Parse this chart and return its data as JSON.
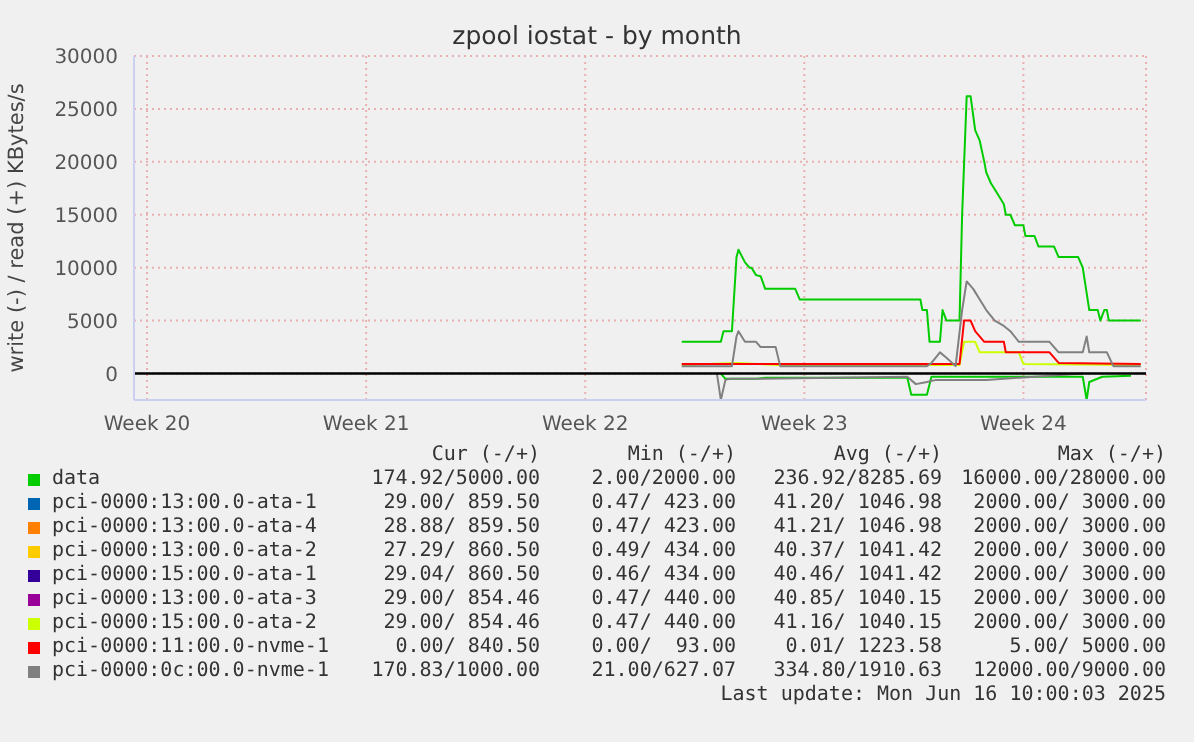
{
  "chart_data": {
    "type": "line",
    "title": "zpool iostat - by month",
    "ylabel": "write (-) / read (+) KBytes/s",
    "xlim": [
      "2025-05-15T02:00",
      "2025-06-16T10:00"
    ],
    "xticks": [
      {
        "value": "2025-05-15T12:00",
        "label": "Week 20"
      },
      {
        "value": "2025-05-22T12:00",
        "label": "Week 21"
      },
      {
        "value": "2025-05-29T12:00",
        "label": "Week 22"
      },
      {
        "value": "2025-06-05T12:00",
        "label": "Week 23"
      },
      {
        "value": "2025-06-12T12:00",
        "label": "Week 24"
      }
    ],
    "ylim": [
      -2500,
      30000
    ],
    "yticks": [
      0,
      5000,
      10000,
      15000,
      20000,
      25000,
      30000
    ],
    "grid": true,
    "legend": "bottom",
    "ref_lines": [
      {
        "axis": "y",
        "value": 0,
        "color": "#000000"
      }
    ],
    "series": [
      {
        "name": "data",
        "color": "#00cc00",
        "x": [
          "2025-06-01T14:00",
          "2025-06-02T20:00",
          "2025-06-02T22:00",
          "2025-06-03T04:30",
          "2025-06-03T08:00",
          "2025-06-03T09:30",
          "2025-06-03T14:30",
          "2025-06-03T18:00",
          "2025-06-03T19:30",
          "2025-06-03T23:00",
          "2025-06-04T02:30",
          "2025-06-04T06:00",
          "2025-06-05T05:00",
          "2025-06-05T08:30",
          "2025-06-09T05:00",
          "2025-06-09T06:30",
          "2025-06-09T10:00",
          "2025-06-09T12:00",
          "2025-06-09T20:00",
          "2025-06-09T22:00",
          "2025-06-10T01:00",
          "2025-06-10T11:00",
          "2025-06-10T13:00",
          "2025-06-10T16:30",
          "2025-06-10T19:30",
          "2025-06-10T23:00",
          "2025-06-11T02:30",
          "2025-06-11T06:00",
          "2025-06-11T07:30",
          "2025-06-11T11:00",
          "2025-06-11T16:00",
          "2025-06-11T21:00",
          "2025-06-11T22:30",
          "2025-06-12T02:00",
          "2025-06-12T05:30",
          "2025-06-12T12:00",
          "2025-06-12T13:30",
          "2025-06-12T20:30",
          "2025-06-12T23:30",
          "2025-06-13T11:30",
          "2025-06-13T15:00",
          "2025-06-14T06:00",
          "2025-06-14T09:30",
          "2025-06-14T14:30",
          "2025-06-14T21:00",
          "2025-06-14T23:00",
          "2025-06-15T02:00",
          "2025-06-15T04:00",
          "2025-06-15T05:30",
          "2025-06-16T06:00"
        ],
        "values": [
          3000,
          3000,
          4000,
          4000,
          11000,
          11700,
          10500,
          10000,
          10000,
          9300,
          9200,
          8000,
          8000,
          7000,
          7000,
          6000,
          6000,
          3000,
          3000,
          6000,
          5000,
          5000,
          15000,
          26200,
          26200,
          23000,
          22000,
          20000,
          19000,
          18000,
          17000,
          16000,
          15000,
          15000,
          14000,
          14000,
          13000,
          13000,
          12000,
          12000,
          11000,
          11000,
          10000,
          6000,
          6000,
          5000,
          6000,
          6000,
          5000,
          5000
        ]
      },
      {
        "name": "pci-0000:13:00.0-ata-1",
        "color": "#0066b3"
      },
      {
        "name": "pci-0000:13:00.0-ata-4",
        "color": "#ff8000"
      },
      {
        "name": "pci-0000:13:00.0-ata-2",
        "color": "#ffcc00"
      },
      {
        "name": "pci-0000:15:00.0-ata-1",
        "color": "#330099"
      },
      {
        "name": "pci-0000:13:00.0-ata-3",
        "color": "#990099"
      },
      {
        "name": "pci-0000:15:00.0-ata-2",
        "color": "#ccff00",
        "x": [
          "2025-06-01T14:00",
          "2025-06-03T08:00",
          "2025-06-04T17:30",
          "2025-06-10T11:00",
          "2025-06-10T14:30",
          "2025-06-10T23:00",
          "2025-06-11T02:30",
          "2025-06-12T08:30",
          "2025-06-12T12:00",
          "2025-06-16T06:00"
        ],
        "values": [
          800,
          1000,
          800,
          800,
          3000,
          3000,
          2000,
          2000,
          900,
          800
        ]
      },
      {
        "name": "pci-0000:11:00.0-nvme-1",
        "color": "#ff0000",
        "x": [
          "2025-06-01T14:00",
          "2025-06-10T11:00",
          "2025-06-10T14:30",
          "2025-06-10T19:30",
          "2025-06-10T23:00",
          "2025-06-11T06:00",
          "2025-06-11T21:00",
          "2025-06-11T22:30",
          "2025-06-13T08:00",
          "2025-06-13T11:30",
          "2025-06-13T15:00",
          "2025-06-16T06:00"
        ],
        "values": [
          900,
          900,
          5000,
          5000,
          4000,
          3000,
          3000,
          2000,
          2000,
          1500,
          1000,
          900
        ]
      },
      {
        "name": "pci-0000:0c:00.0-nvme-1",
        "color": "#808080",
        "x": [
          "2025-06-01T14:00",
          "2025-06-03T04:30",
          "2025-06-03T08:00",
          "2025-06-03T09:30",
          "2025-06-03T14:30",
          "2025-06-03T23:00",
          "2025-06-04T02:30",
          "2025-06-04T14:00",
          "2025-06-04T17:30",
          "2025-06-09T10:00",
          "2025-06-09T13:30",
          "2025-06-09T20:00",
          "2025-06-10T01:00",
          "2025-06-10T08:00",
          "2025-06-10T13:00",
          "2025-06-10T16:30",
          "2025-06-10T21:30",
          "2025-06-11T02:30",
          "2025-06-11T07:30",
          "2025-06-11T14:00",
          "2025-06-11T21:00",
          "2025-06-12T02:00",
          "2025-06-12T08:30",
          "2025-06-13T08:00",
          "2025-06-13T15:00",
          "2025-06-14T09:30",
          "2025-06-14T12:30",
          "2025-06-14T14:30",
          "2025-06-15T04:00",
          "2025-06-15T09:00",
          "2025-06-16T06:00"
        ],
        "values": [
          700,
          700,
          3500,
          4000,
          3000,
          3000,
          2500,
          2500,
          700,
          700,
          1000,
          2000,
          1500,
          700,
          6000,
          8700,
          8000,
          7000,
          6000,
          5000,
          4500,
          4000,
          3000,
          3000,
          2000,
          2000,
          3500,
          2000,
          2000,
          700,
          700
        ]
      },
      {
        "color": "#00cc00",
        "x": [
          "2025-06-02T20:00",
          "2025-06-02T23:30",
          "2025-06-03T23:00",
          "2025-06-04T06:00",
          "2025-06-08T19:00",
          "2025-06-08T22:00",
          "2025-06-09T10:00",
          "2025-06-09T13:30",
          "2025-06-14T09:30",
          "2025-06-14T12:30",
          "2025-06-14T14:30",
          "2025-06-15T00:30",
          "2025-06-15T22:30"
        ],
        "values": [
          0,
          -500,
          -500,
          -400,
          -400,
          -2000,
          -2000,
          -300,
          -300,
          -2500,
          -800,
          -300,
          -200
        ]
      },
      {
        "color": "#808080",
        "x": [
          "2025-06-02T17:00",
          "2025-06-02T20:00",
          "2025-06-02T23:30",
          "2025-06-03T03:00",
          "2025-06-03T23:00",
          "2025-06-08T19:00",
          "2025-06-09T01:30",
          "2025-06-09T10:00",
          "2025-06-09T17:00",
          "2025-06-11T07:30",
          "2025-06-14T09:30"
        ],
        "values": [
          0,
          -2500,
          -600,
          -500,
          -500,
          -300,
          -1000,
          -800,
          -600,
          -600,
          0
        ]
      }
    ],
    "annotations": [
      "Cur (-/+)",
      "Min (-/+)",
      "Avg (-/+)",
      "Max (-/+)",
      "174.92/5000.00",
      "2.00/2000.00",
      "236.92/8285.69",
      "16000.00/28000.00",
      "29.00/ 859.50",
      "0.47/ 423.00",
      "41.20/ 1046.98",
      "2000.00/ 3000.00",
      "28.88/ 859.50",
      "0.47/ 423.00",
      "41.21/ 1046.98",
      "2000.00/ 3000.00",
      "27.29/ 860.50",
      "0.49/ 434.00",
      "40.37/ 1041.42",
      "2000.00/ 3000.00",
      "29.04/ 860.50",
      "0.46/ 434.00",
      "40.46/ 1041.42",
      "2000.00/ 3000.00",
      "29.00/ 854.46",
      "0.47/ 440.00",
      "40.85/ 1040.15",
      "2000.00/ 3000.00",
      "29.00/ 854.46",
      "0.47/ 440.00",
      "41.16/ 1040.15",
      "2000.00/ 3000.00",
      "0.00/ 840.50",
      "0.00/  93.00",
      "0.01/ 1223.58",
      "5.00/ 5000.00",
      "170.83/1000.00",
      "21.00/627.07",
      "334.80/1910.63",
      "12000.00/9000.00",
      "Last update: Mon Jun 16 10:00:03 2025"
    ]
  }
}
